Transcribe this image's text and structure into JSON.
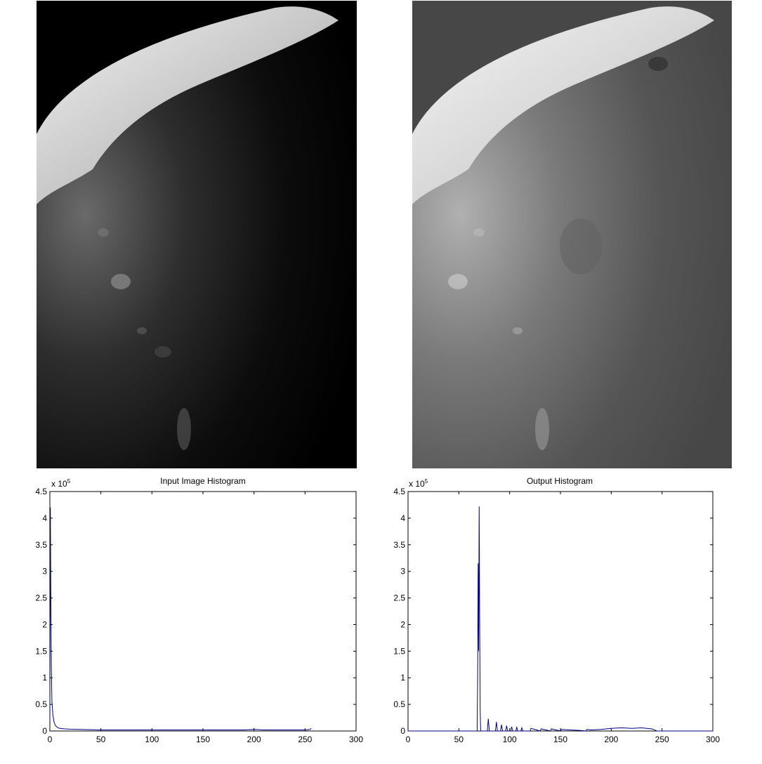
{
  "colors": {
    "axis": "#000000",
    "series": "#00008b",
    "input_background": "#000000",
    "output_background": "#474747"
  },
  "images": {
    "left": {
      "description_name": "input-moon-image"
    },
    "right": {
      "description_name": "output-equalized-moon-image"
    }
  },
  "chart_data": [
    {
      "type": "line",
      "title": "Input Image Histogram",
      "exponent_label": "x 10",
      "exponent_power": "5",
      "xlim": [
        0,
        300
      ],
      "ylim": [
        0,
        4.5
      ],
      "x_ticks": [
        "0",
        "50",
        "100",
        "150",
        "200",
        "250",
        "300"
      ],
      "y_ticks": [
        "0",
        "0.5",
        "1",
        "1.5",
        "2",
        "2.5",
        "3",
        "3.5",
        "4",
        "4.5"
      ],
      "series": [
        {
          "name": "input",
          "x": [
            0,
            0.5,
            1,
            1.5,
            2,
            3,
            4,
            5,
            6,
            8,
            10,
            15,
            20,
            30,
            50,
            100,
            150,
            190,
            200,
            210,
            230,
            250,
            255,
            256
          ],
          "y": [
            0.2,
            4.2,
            2.3,
            1.2,
            0.55,
            0.3,
            0.18,
            0.12,
            0.09,
            0.06,
            0.05,
            0.04,
            0.035,
            0.03,
            0.02,
            0.02,
            0.02,
            0.02,
            0.03,
            0.02,
            0.02,
            0.02,
            0.03,
            0.05
          ]
        }
      ]
    },
    {
      "type": "line",
      "title": "Output Histogram",
      "exponent_label": "x 10",
      "exponent_power": "5",
      "xlim": [
        0,
        300
      ],
      "ylim": [
        0,
        4.5
      ],
      "x_ticks": [
        "0",
        "50",
        "100",
        "150",
        "200",
        "250",
        "300"
      ],
      "y_ticks": [
        "0",
        "0.5",
        "1",
        "1.5",
        "2",
        "2.5",
        "3",
        "3.5",
        "4",
        "4.5"
      ],
      "series": [
        {
          "name": "output",
          "x": [
            0,
            68,
            68.5,
            69,
            69.5,
            70,
            70.5,
            71,
            71.5,
            72,
            75,
            78,
            79,
            80,
            84,
            86,
            87,
            88,
            91,
            92,
            93,
            96,
            97,
            98,
            101,
            102,
            103,
            106,
            107,
            108,
            111,
            112,
            113,
            120,
            121,
            130,
            131,
            140,
            141,
            150,
            151,
            160,
            170,
            175,
            176,
            180,
            190,
            195,
            200,
            210,
            220,
            230,
            240,
            245,
            300
          ],
          "y": [
            0,
            0,
            1.0,
            3.15,
            1.5,
            4.22,
            2.1,
            0.4,
            0,
            0,
            0,
            0,
            0.23,
            0,
            0,
            0,
            0.17,
            0,
            0,
            0.12,
            0,
            0,
            0.1,
            0,
            0,
            0.08,
            0,
            0,
            0.07,
            0,
            0,
            0.06,
            0,
            0,
            0.05,
            0,
            0.04,
            0,
            0.04,
            0,
            0.03,
            0.02,
            0.01,
            0,
            0.03,
            0.02,
            0.03,
            0.04,
            0.05,
            0.06,
            0.05,
            0.06,
            0.04,
            0,
            0
          ]
        }
      ]
    }
  ]
}
